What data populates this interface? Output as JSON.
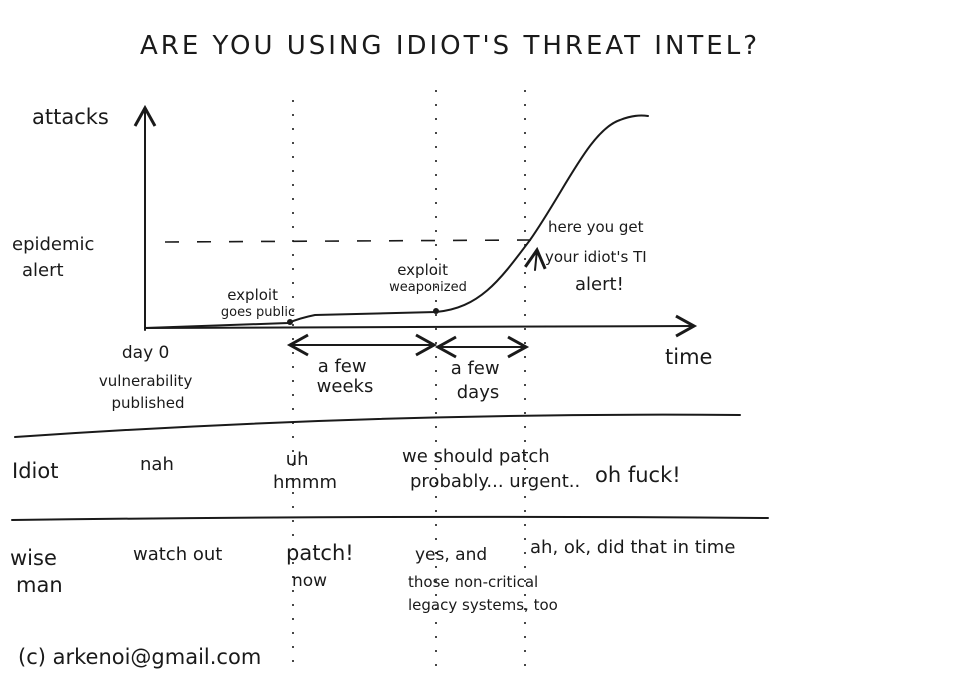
{
  "title": "ARE YOU USING IDIOT'S THREAT INTEL?",
  "axes": {
    "y": "attacks",
    "x": "time"
  },
  "threshold": [
    "epidemic",
    "alert"
  ],
  "annotations": {
    "exploit_public": [
      "exploit",
      "goes public"
    ],
    "exploit_weaponized": [
      "exploit",
      "weaponized"
    ],
    "ti_alert": [
      "here you get",
      "your idiot's TI",
      "alert!"
    ],
    "day0": [
      "day 0",
      "vulnerability",
      "published"
    ],
    "few_weeks": [
      "a few",
      "weeks"
    ],
    "few_days": [
      "a few",
      "days"
    ]
  },
  "rows": [
    {
      "label": "Idiot",
      "cells": [
        "nah",
        [
          "uh",
          "hmmm"
        ],
        [
          "we should patch",
          "probably... urgent.."
        ],
        "oh fuck!"
      ]
    },
    {
      "label": [
        "wise",
        "man"
      ],
      "cells": [
        "watch out",
        [
          "patch!",
          "now"
        ],
        [
          "yes, and",
          "those non-critical",
          "legacy systems, too"
        ],
        "ah, ok, did that in time"
      ]
    }
  ],
  "footer": "(c) arkenoi@gmail.com"
}
